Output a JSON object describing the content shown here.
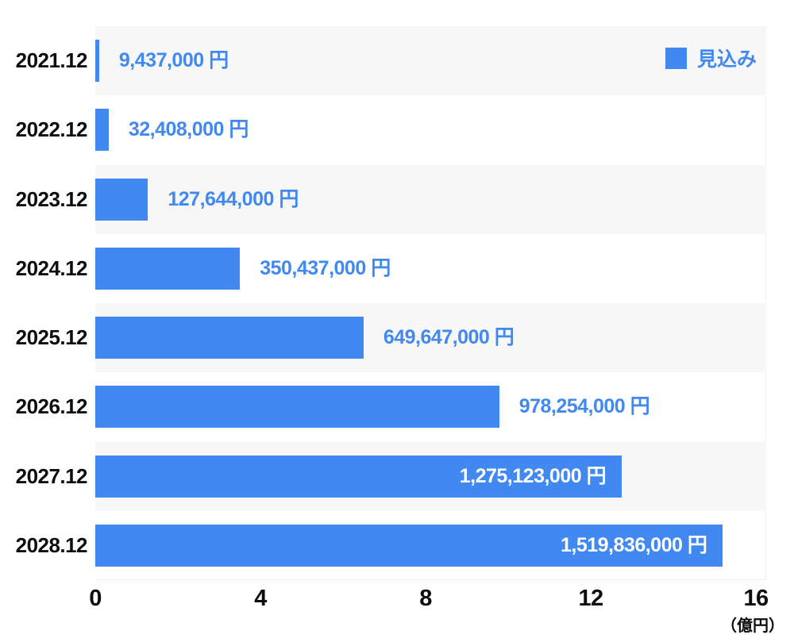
{
  "chart_data": {
    "type": "bar",
    "orientation": "horizontal",
    "title": "",
    "xlabel_unit": "（億円）",
    "ylabel": "",
    "categories": [
      "2021.12",
      "2022.12",
      "2023.12",
      "2024.12",
      "2025.12",
      "2026.12",
      "2027.12",
      "2028.12"
    ],
    "series": [
      {
        "name": "見込み",
        "values_yen": [
          9437000,
          32408000,
          127644000,
          350437000,
          649647000,
          978254000,
          1275123000,
          1519836000
        ],
        "values_oku": [
          0.09437,
          0.32408,
          1.27644,
          3.50437,
          6.49647,
          9.78254,
          12.75123,
          15.19836
        ]
      }
    ],
    "value_labels": [
      "9,437,000 円",
      "32,408,000 円",
      "127,644,000 円",
      "350,437,000 円",
      "649,647,000 円",
      "978,254,000 円",
      "1,275,123,000 円",
      "1,519,836,000 円"
    ],
    "label_inside": [
      false,
      false,
      false,
      false,
      false,
      false,
      true,
      true
    ],
    "x_ticks": [
      "0",
      "4",
      "8",
      "12",
      "16"
    ],
    "x_tick_values": [
      0,
      4,
      8,
      12,
      16
    ],
    "xlim": [
      0,
      16
    ],
    "grid": false,
    "legend": {
      "label": "見込み",
      "position": "top-right"
    },
    "colors": {
      "bar": "#4189f0",
      "value_text": "#4189f0",
      "inside_value_text": "#ffffff",
      "band_shaded": "#f7f7f7",
      "band_plain": "#ffffff",
      "axis_text": "#0d0d0d"
    }
  }
}
